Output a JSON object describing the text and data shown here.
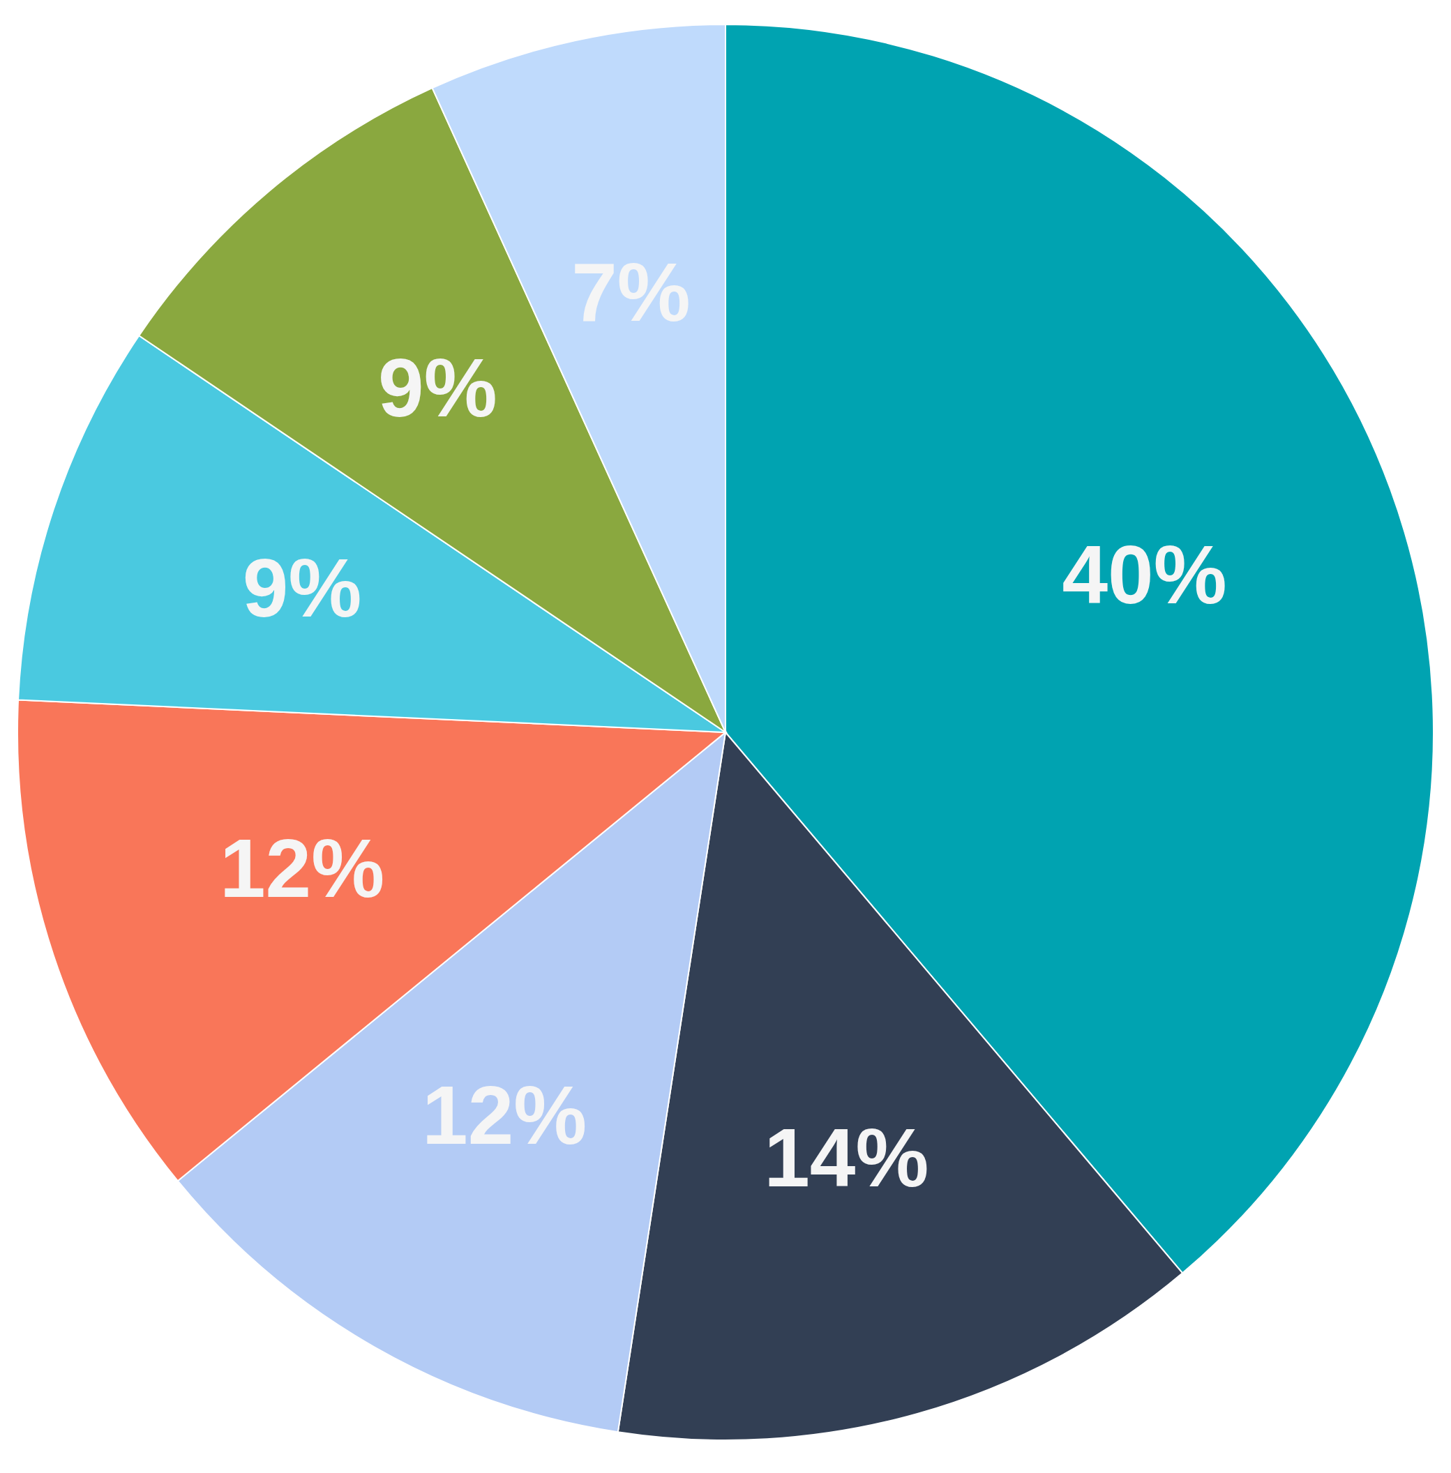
{
  "chart_data": {
    "type": "pie",
    "categories": [
      null,
      null,
      null,
      null,
      null,
      null,
      null
    ],
    "values": [
      40,
      14,
      12,
      12,
      9,
      9,
      7
    ],
    "value_labels": [
      "40%",
      "14%",
      "12%",
      "12%",
      "9%",
      "9%",
      "7%"
    ],
    "colors": [
      "#00a3b1",
      "#323f54",
      "#b3cbf5",
      "#f97659",
      "#4ac9e0",
      "#8aa83f",
      "#bfdafc"
    ],
    "legend": false
  }
}
